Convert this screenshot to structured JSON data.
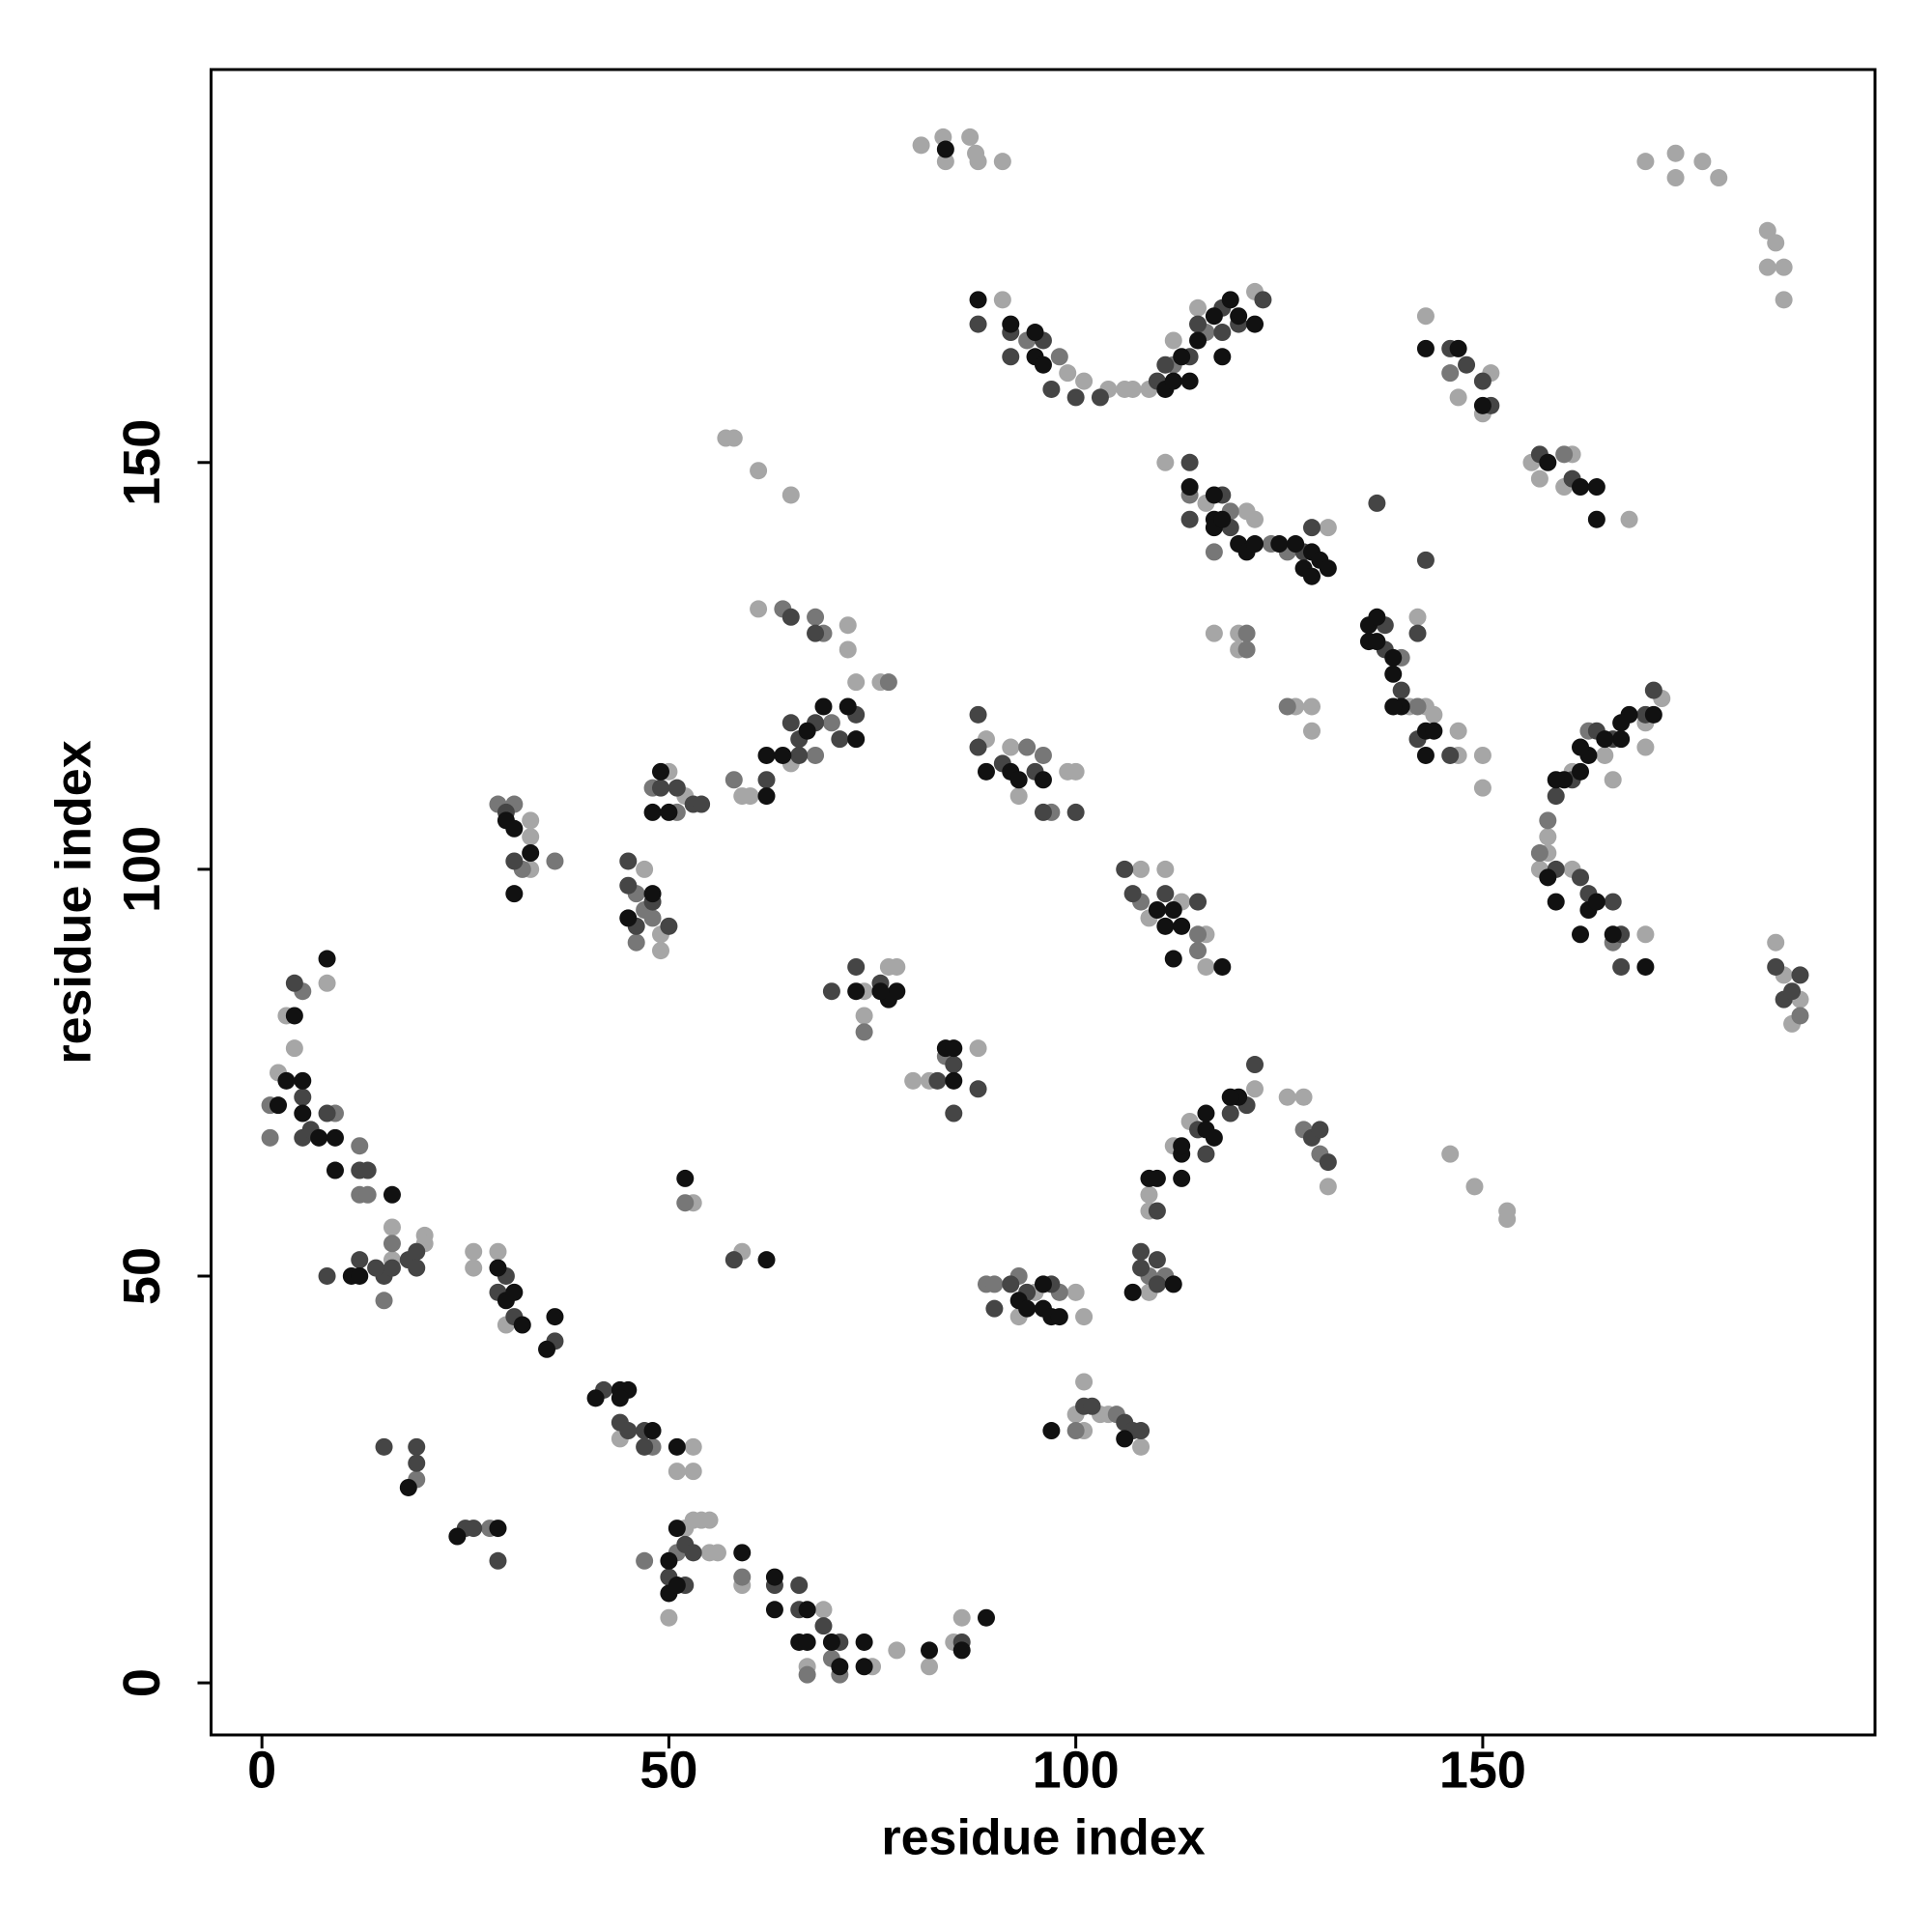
{
  "chart_data": {
    "type": "scatter",
    "x_label": "residue index",
    "y_label": "residue index",
    "xlim": [
      -6.25,
      198.2
    ],
    "ylim": [
      -6.4,
      198.3
    ],
    "xticks": [
      0,
      50,
      100,
      150
    ],
    "yticks": [
      0,
      50,
      100,
      150
    ],
    "series": [
      {
        "color": "#a6a6a6",
        "x": [
          81,
          83.7,
          87,
          87.7,
          91,
          84,
          88,
          170,
          173.7,
          173.7,
          177,
          179,
          185,
          186,
          187,
          185,
          187,
          91,
          99,
          101,
          104,
          106,
          107,
          109,
          112,
          115,
          122,
          143,
          147,
          151,
          150,
          156,
          157,
          161,
          160,
          168,
          111,
          116,
          121,
          122,
          131,
          117,
          120,
          120,
          127,
          129,
          129,
          141,
          142,
          143,
          144,
          147,
          147,
          150,
          150,
          172,
          170,
          161,
          158,
          158,
          157,
          161,
          170,
          165,
          166,
          170,
          186,
          187,
          189,
          188,
          108,
          111,
          113,
          116,
          116,
          109,
          89,
          92,
          93,
          99,
          100,
          61,
          72,
          72,
          73,
          76,
          65,
          59,
          60,
          50,
          52,
          47,
          49,
          49,
          33,
          33,
          33,
          74,
          74,
          77,
          78,
          80,
          82,
          88,
          2,
          3,
          4,
          8,
          16,
          16,
          20,
          20,
          26,
          26,
          29,
          30,
          44,
          53,
          51,
          53,
          52,
          53,
          54,
          55,
          55,
          56,
          50,
          59,
          67,
          69,
          75,
          78,
          82,
          85,
          86,
          53,
          59,
          57,
          58,
          61,
          65,
          95,
          100,
          101,
          93,
          100,
          101,
          101,
          103,
          104,
          108,
          109,
          109,
          109,
          112,
          114,
          122,
          126,
          128,
          131,
          146,
          149,
          153,
          153
        ],
        "values": [
          189,
          190,
          190,
          188,
          187,
          187,
          187,
          187,
          188,
          185,
          187,
          185,
          178.5,
          177,
          174,
          174,
          170,
          170,
          161,
          160,
          159,
          159,
          159,
          159,
          165,
          169,
          171,
          168,
          158,
          161,
          156,
          150,
          148,
          151,
          147,
          143,
          150,
          145,
          144,
          143,
          142,
          129,
          129,
          127,
          120,
          120,
          117,
          120,
          131,
          120,
          119,
          117,
          114,
          114,
          110,
          121,
          118,
          112,
          104,
          102,
          100,
          100,
          92,
          114,
          111,
          115,
          91,
          87,
          84,
          81,
          100,
          100,
          96,
          92,
          88,
          94,
          116,
          115,
          109,
          112,
          112,
          132,
          130,
          127,
          123,
          123,
          113,
          109,
          109,
          112,
          109,
          100,
          92,
          90,
          106,
          104,
          100,
          85,
          82,
          88,
          88,
          74,
          74,
          78,
          75,
          82,
          78,
          86,
          56,
          52,
          55,
          54,
          53,
          51,
          53,
          44,
          30,
          29,
          26,
          26,
          19,
          20,
          20,
          20,
          16,
          16,
          8,
          12,
          2,
          9,
          2,
          4,
          2,
          5,
          8,
          59,
          53,
          153,
          153,
          149,
          146,
          48,
          48,
          45,
          45,
          33,
          37,
          31,
          33,
          33,
          29,
          48,
          58,
          60,
          66,
          69,
          73,
          72,
          72,
          61,
          65,
          61,
          58,
          57
        ]
      },
      {
        "color": "#777777",
        "x": [
          94,
          98,
          116,
          112,
          160,
          146,
          114,
          119,
          117,
          124,
          126,
          140,
          142,
          121,
          121,
          126,
          158,
          157,
          189,
          108,
          115,
          115,
          94,
          96,
          97,
          64,
          68,
          69,
          77,
          70,
          58,
          68,
          48,
          51,
          46,
          47,
          48,
          46,
          29,
          31,
          32,
          36,
          74,
          84,
          1,
          1,
          5,
          9,
          12,
          12,
          13,
          16,
          15,
          48,
          19,
          28,
          47,
          51,
          59,
          67,
          70,
          71,
          52,
          89,
          90,
          93,
          98,
          100,
          105,
          109,
          111,
          128,
          130,
          166,
          163
        ],
        "values": [
          165,
          163,
          166,
          162,
          151,
          161,
          146,
          144,
          139,
          140,
          139,
          126,
          120,
          127,
          129,
          120,
          106,
          102,
          82,
          96,
          92,
          90,
          115,
          114,
          107,
          132,
          131,
          129,
          123,
          118,
          111,
          114,
          110,
          107,
          97,
          95,
          94,
          91,
          108,
          108,
          100,
          101,
          80,
          77,
          71,
          67,
          85,
          70,
          66,
          60,
          60,
          54,
          47,
          29,
          25,
          19,
          15,
          16,
          13,
          1,
          3,
          1,
          59,
          49,
          49,
          50,
          48,
          31,
          33,
          50,
          50,
          68,
          65,
          91,
          117
        ]
      },
      {
        "color": "#454545",
        "x": [
          88,
          92,
          96,
          92,
          97,
          100,
          103,
          110,
          111,
          114,
          115,
          118,
          118,
          120,
          123,
          146,
          148,
          150,
          151,
          157,
          161,
          114,
          114,
          118,
          119,
          128,
          129,
          137,
          143,
          138,
          138,
          140,
          142,
          142,
          146,
          171,
          170,
          166,
          164,
          161,
          159,
          159,
          162,
          163,
          166,
          167,
          167,
          186,
          187,
          188,
          189,
          106,
          107,
          111,
          115,
          88,
          88,
          91,
          95,
          96,
          100,
          65,
          68,
          73,
          71,
          68,
          65,
          66,
          66,
          62,
          49,
          51,
          53,
          54,
          45,
          45,
          48,
          46,
          50,
          30,
          31,
          70,
          73,
          76,
          83,
          85,
          88,
          85,
          4,
          5,
          5,
          6,
          8,
          12,
          13,
          15,
          16,
          18,
          19,
          19,
          8,
          12,
          14,
          30,
          29,
          31,
          36,
          42,
          44,
          45,
          47,
          47,
          15,
          19,
          19,
          25,
          26,
          29,
          52,
          53,
          50,
          52,
          63,
          66,
          66,
          69,
          71,
          86,
          58,
          90,
          92,
          94,
          97,
          101,
          102,
          106,
          107,
          108,
          108,
          108,
          110,
          110,
          110,
          115,
          116,
          119,
          121,
          122,
          129,
          130,
          131
        ],
        "values": [
          167,
          166,
          165,
          163,
          159,
          158,
          158,
          160,
          162,
          163,
          167,
          166,
          169,
          167,
          170,
          164,
          162,
          160,
          157,
          151,
          148,
          150,
          143,
          146,
          142,
          139,
          142,
          145,
          138,
          130,
          127,
          122,
          129,
          116,
          114,
          122,
          119,
          116,
          117,
          111,
          109,
          100,
          99,
          97,
          96,
          92,
          88,
          88,
          84,
          85,
          87,
          100,
          97,
          97,
          96,
          119,
          115,
          113,
          112,
          107,
          107,
          131,
          129,
          119,
          116,
          118,
          118,
          116,
          114,
          111,
          110,
          110,
          108,
          108,
          101,
          98,
          96,
          93,
          93,
          107,
          101,
          85,
          88,
          86,
          74,
          76,
          73,
          70,
          86,
          72,
          67,
          68,
          70,
          63,
          63,
          50,
          51,
          52,
          53,
          51,
          50,
          52,
          51,
          50,
          48,
          45,
          42,
          36,
          32,
          31,
          31,
          29,
          29,
          29,
          27,
          19,
          19,
          15,
          17,
          16,
          13,
          12,
          12,
          12,
          9,
          7,
          5,
          5,
          52,
          46,
          49,
          48,
          49,
          34,
          34,
          32,
          31,
          31,
          51,
          53,
          52,
          49,
          58,
          68,
          65,
          70,
          71,
          76,
          67,
          68,
          64
        ]
      },
      {
        "color": "#111111",
        "x": [
          84,
          88,
          92,
          95,
          95,
          96,
          111,
          112,
          113,
          114,
          115,
          117,
          118,
          119,
          120,
          122,
          143,
          147,
          150,
          158,
          162,
          164,
          164,
          114,
          117,
          117,
          117,
          118,
          120,
          121,
          122,
          125,
          127,
          128,
          129,
          130,
          131,
          129,
          136,
          137,
          136,
          137,
          139,
          139,
          140,
          139,
          143,
          144,
          143,
          171,
          168,
          167,
          167,
          165,
          163,
          162,
          162,
          160,
          159,
          158,
          159,
          163,
          164,
          162,
          166,
          170,
          110,
          111,
          112,
          113,
          112,
          118,
          89,
          92,
          93,
          96,
          69,
          72,
          73,
          64,
          62,
          62,
          67,
          49,
          48,
          50,
          48,
          45,
          30,
          31,
          31,
          33,
          73,
          77,
          78,
          76,
          84,
          85,
          85,
          2,
          3,
          4,
          5,
          5,
          7,
          8,
          9,
          9,
          16,
          11,
          12,
          29,
          30,
          31,
          32,
          35,
          36,
          41,
          44,
          45,
          44,
          48,
          51,
          18,
          24,
          29,
          50,
          51,
          50,
          51,
          59,
          63,
          63,
          67,
          66,
          67,
          70,
          71,
          74,
          74,
          82,
          86,
          89,
          52,
          62,
          93,
          94,
          96,
          96,
          97,
          98,
          97,
          106,
          107,
          112,
          109,
          110,
          113,
          113,
          113,
          116,
          116,
          117,
          120,
          119
        ],
        "values": [
          188.5,
          170,
          167,
          166,
          163,
          162,
          159,
          160,
          163,
          160,
          165,
          168,
          163,
          170,
          168,
          167,
          164,
          164,
          157,
          150,
          147,
          147,
          143,
          147,
          146,
          143,
          142,
          143,
          140,
          139,
          140,
          140,
          140,
          137,
          139,
          138,
          137,
          136,
          130,
          131,
          128,
          128,
          126,
          124,
          120,
          120,
          117,
          117,
          114,
          119,
          119,
          118,
          116,
          116,
          114,
          115,
          112,
          111,
          111,
          99,
          96,
          95,
          96,
          92,
          92,
          88,
          95,
          93,
          95,
          93,
          89,
          88,
          112,
          112,
          111,
          111,
          120,
          120,
          116,
          114,
          114,
          109,
          117,
          112,
          107,
          107,
          97,
          94,
          106,
          105,
          97,
          102,
          85,
          84,
          85,
          85,
          78,
          78,
          74,
          71,
          74,
          82,
          74,
          70,
          67,
          89,
          67,
          63,
          60,
          50,
          50,
          51,
          47,
          48,
          44,
          41,
          45,
          35,
          36,
          36,
          35,
          31,
          29,
          24,
          18,
          19,
          15,
          19,
          11,
          12,
          16,
          13,
          9,
          9,
          5,
          5,
          5,
          2,
          5,
          2,
          4,
          4,
          8,
          62,
          52,
          47,
          46,
          49,
          46,
          45,
          45,
          31,
          30,
          48,
          49,
          62,
          62,
          65,
          66,
          62,
          68,
          70,
          67,
          72,
          72
        ]
      }
    ]
  }
}
